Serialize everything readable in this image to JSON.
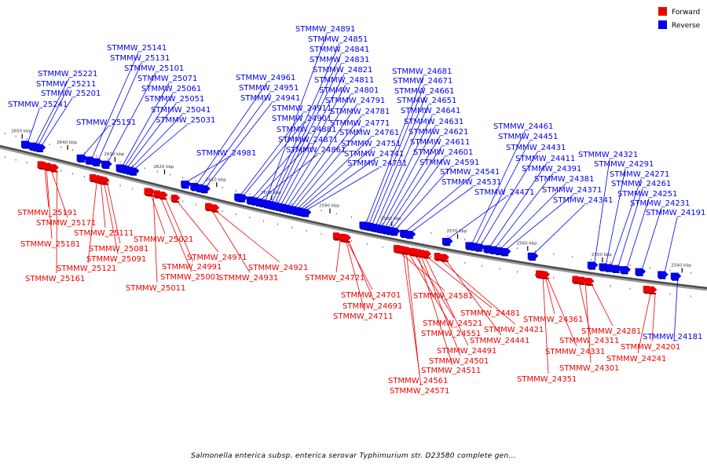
{
  "legend": [
    {
      "label": "Forward",
      "color": "#ee0000"
    },
    {
      "label": "Reverse",
      "color": "#0000ee"
    }
  ],
  "colors": {
    "forward": "#ee0000",
    "reverse": "#0000ee",
    "backbone": "#777777"
  },
  "caption": "Salmonella enterica subsp. enterica serovar Typhimurium str. D23580 complete gen...",
  "ticks": [
    "2650 kbp",
    "2640 kbp",
    "2630 kbp",
    "2620 kbp",
    "2610 kbp",
    "2600 kbp",
    "2590 kbp",
    "2580 kbp",
    "2570 kbp",
    "2560 kbp",
    "2550 kbp",
    "2540 kbp"
  ],
  "genes": [
    {
      "label": "STMMW_25241",
      "strand": "reverse",
      "kbp": 2648.6
    },
    {
      "label": "STMMW_25221",
      "strand": "reverse",
      "kbp": 2646.9
    },
    {
      "label": "STMMW_25211",
      "strand": "reverse",
      "kbp": 2646.2
    },
    {
      "label": "STMMW_25201",
      "strand": "reverse",
      "kbp": 2645.5
    },
    {
      "label": "STMMW_25191",
      "strand": "forward",
      "kbp": 2645.0
    },
    {
      "label": "STMMW_25181",
      "strand": "forward",
      "kbp": 2644.6
    },
    {
      "label": "STMMW_25171",
      "strand": "forward",
      "kbp": 2643.5
    },
    {
      "label": "STMMW_25161",
      "strand": "forward",
      "kbp": 2642.3
    },
    {
      "label": "STMMW_25151",
      "strand": "reverse",
      "kbp": 2636.5
    },
    {
      "label": "STMMW_25141",
      "strand": "reverse",
      "kbp": 2634.7
    },
    {
      "label": "STMMW_25131",
      "strand": "reverse",
      "kbp": 2633.3
    },
    {
      "label": "STMMW_25121",
      "strand": "forward",
      "kbp": 2633.8
    },
    {
      "label": "STMMW_25111",
      "strand": "forward",
      "kbp": 2632.9
    },
    {
      "label": "STMMW_25101",
      "strand": "reverse",
      "kbp": 2631.3
    },
    {
      "label": "STMMW_25091",
      "strand": "forward",
      "kbp": 2632.2
    },
    {
      "label": "STMMW_25081",
      "strand": "forward",
      "kbp": 2631.5
    },
    {
      "label": "STMMW_25071",
      "strand": "reverse",
      "kbp": 2628.3
    },
    {
      "label": "STMMW_25061",
      "strand": "reverse",
      "kbp": 2627.8
    },
    {
      "label": "STMMW_25051",
      "strand": "reverse",
      "kbp": 2627.2
    },
    {
      "label": "STMMW_25041",
      "strand": "reverse",
      "kbp": 2626.4
    },
    {
      "label": "STMMW_25031",
      "strand": "reverse",
      "kbp": 2625.7
    },
    {
      "label": "STMMW_25021",
      "strand": "forward",
      "kbp": 2622.6
    },
    {
      "label": "STMMW_25011",
      "strand": "forward",
      "kbp": 2622.2
    },
    {
      "label": "STMMW_25001",
      "strand": "forward",
      "kbp": 2620.7
    },
    {
      "label": "STMMW_24991",
      "strand": "forward",
      "kbp": 2619.7
    },
    {
      "label": "STMMW_24981",
      "strand": "reverse",
      "kbp": 2615.4
    },
    {
      "label": "STMMW_24971",
      "strand": "forward",
      "kbp": 2617.3
    },
    {
      "label": "STMMW_24961",
      "strand": "reverse",
      "kbp": 2613.6
    },
    {
      "label": "STMMW_24951",
      "strand": "reverse",
      "kbp": 2612.6
    },
    {
      "label": "STMMW_24941",
      "strand": "reverse",
      "kbp": 2611.8
    },
    {
      "label": "STMMW_24931",
      "strand": "forward",
      "kbp": 2610.8
    },
    {
      "label": "STMMW_24921",
      "strand": "forward",
      "kbp": 2609.8
    },
    {
      "label": "STMMW_24911",
      "strand": "reverse",
      "kbp": 2605.4
    },
    {
      "label": "STMMW_24901",
      "strand": "reverse",
      "kbp": 2604.9
    },
    {
      "label": "STMMW_24891",
      "strand": "reverse",
      "kbp": 2601.0
    },
    {
      "label": "STMMW_24881",
      "strand": "reverse",
      "kbp": 2603.2
    },
    {
      "label": "STMMW_24871",
      "strand": "reverse",
      "kbp": 2602.5
    },
    {
      "label": "STMMW_24861",
      "strand": "reverse",
      "kbp": 2601.7
    },
    {
      "label": "STMMW_24851",
      "strand": "reverse",
      "kbp": 2600.3
    },
    {
      "label": "STMMW_24841",
      "strand": "reverse",
      "kbp": 2599.8
    },
    {
      "label": "STMMW_24831",
      "strand": "reverse",
      "kbp": 2599.3
    },
    {
      "label": "STMMW_24821",
      "strand": "reverse",
      "kbp": 2598.8
    },
    {
      "label": "STMMW_24811",
      "strand": "reverse",
      "kbp": 2598.2
    },
    {
      "label": "STMMW_24801",
      "strand": "reverse",
      "kbp": 2597.6
    },
    {
      "label": "STMMW_24791",
      "strand": "reverse",
      "kbp": 2597.0
    },
    {
      "label": "STMMW_24781",
      "strand": "reverse",
      "kbp": 2596.4
    },
    {
      "label": "STMMW_24771",
      "strand": "reverse",
      "kbp": 2595.8
    },
    {
      "label": "STMMW_24761",
      "strand": "reverse",
      "kbp": 2595.2
    },
    {
      "label": "STMMW_24751",
      "strand": "reverse",
      "kbp": 2594.7
    },
    {
      "label": "STMMW_24741",
      "strand": "reverse",
      "kbp": 2594.2
    },
    {
      "label": "STMMW_24731",
      "strand": "reverse",
      "kbp": 2593.7
    },
    {
      "label": "STMMW_24721",
      "strand": "forward",
      "kbp": 2588.3
    },
    {
      "label": "STMMW_24711",
      "strand": "forward",
      "kbp": 2587.3
    },
    {
      "label": "STMMW_24701",
      "strand": "forward",
      "kbp": 2587.1
    },
    {
      "label": "STMMW_24691",
      "strand": "forward",
      "kbp": 2586.8
    },
    {
      "label": "STMMW_24681",
      "strand": "reverse",
      "kbp": 2584.0
    },
    {
      "label": "STMMW_24671",
      "strand": "reverse",
      "kbp": 2583.5
    },
    {
      "label": "STMMW_24661",
      "strand": "reverse",
      "kbp": 2583.0
    },
    {
      "label": "STMMW_24651",
      "strand": "reverse",
      "kbp": 2582.4
    },
    {
      "label": "STMMW_24641",
      "strand": "reverse",
      "kbp": 2581.9
    },
    {
      "label": "STMMW_24631",
      "strand": "reverse",
      "kbp": 2581.4
    },
    {
      "label": "STMMW_24621",
      "strand": "reverse",
      "kbp": 2580.9
    },
    {
      "label": "STMMW_24611",
      "strand": "reverse",
      "kbp": 2580.4
    },
    {
      "label": "STMMW_24601",
      "strand": "reverse",
      "kbp": 2579.8
    },
    {
      "label": "STMMW_24591",
      "strand": "reverse",
      "kbp": 2579.2
    },
    {
      "label": "STMMW_24581",
      "strand": "forward",
      "kbp": 2578.6
    },
    {
      "label": "STMMW_24571",
      "strand": "forward",
      "kbp": 2578.2
    },
    {
      "label": "STMMW_24561",
      "strand": "forward",
      "kbp": 2577.7
    },
    {
      "label": "STMMW_24551",
      "strand": "forward",
      "kbp": 2577.2
    },
    {
      "label": "STMMW_24541",
      "strand": "reverse",
      "kbp": 2577.6
    },
    {
      "label": "STMMW_24531",
      "strand": "reverse",
      "kbp": 2576.8
    },
    {
      "label": "STMMW_24521",
      "strand": "forward",
      "kbp": 2576.3
    },
    {
      "label": "STMMW_24511",
      "strand": "forward",
      "kbp": 2575.9
    },
    {
      "label": "STMMW_24501",
      "strand": "forward",
      "kbp": 2575.4
    },
    {
      "label": "STMMW_24491",
      "strand": "forward",
      "kbp": 2574.8
    },
    {
      "label": "STMMW_24481",
      "strand": "forward",
      "kbp": 2574.2
    },
    {
      "label": "STMMW_24471",
      "strand": "reverse",
      "kbp": 2571.2
    },
    {
      "label": "STMMW_24461",
      "strand": "reverse",
      "kbp": 2567.8
    },
    {
      "label": "STMMW_24451",
      "strand": "reverse",
      "kbp": 2567.2
    },
    {
      "label": "STMMW_24441",
      "strand": "forward",
      "kbp": 2571.5
    },
    {
      "label": "STMMW_24431",
      "strand": "reverse",
      "kbp": 2566.5
    },
    {
      "label": "STMMW_24421",
      "strand": "forward",
      "kbp": 2572.4
    },
    {
      "label": "STMMW_24411",
      "strand": "reverse",
      "kbp": 2565.2
    },
    {
      "label": "STMMW_24391",
      "strand": "reverse",
      "kbp": 2564.4
    },
    {
      "label": "STMMW_24381",
      "strand": "reverse",
      "kbp": 2563.6
    },
    {
      "label": "STMMW_24371",
      "strand": "reverse",
      "kbp": 2562.8
    },
    {
      "label": "STMMW_24361",
      "strand": "forward",
      "kbp": 2557.5
    },
    {
      "label": "STMMW_24351",
      "strand": "forward",
      "kbp": 2557.9
    },
    {
      "label": "STMMW_24341",
      "strand": "reverse",
      "kbp": 2559.0
    },
    {
      "label": "STMMW_24331",
      "strand": "forward",
      "kbp": 2557.2
    },
    {
      "label": "STMMW_24321",
      "strand": "reverse",
      "kbp": 2551.0
    },
    {
      "label": "STMMW_24311",
      "strand": "forward",
      "kbp": 2553.0
    },
    {
      "label": "STMMW_24301",
      "strand": "forward",
      "kbp": 2552.2
    },
    {
      "label": "STMMW_24291",
      "strand": "reverse",
      "kbp": 2549.5
    },
    {
      "label": "STMMW_24281",
      "strand": "forward",
      "kbp": 2551.3
    },
    {
      "label": "STMMW_24271",
      "strand": "reverse",
      "kbp": 2548.8
    },
    {
      "label": "STMMW_24261",
      "strand": "reverse",
      "kbp": 2547.9
    },
    {
      "label": "STMMW_24251",
      "strand": "reverse",
      "kbp": 2546.8
    },
    {
      "label": "STMMW_24241",
      "strand": "forward",
      "kbp": 2543.9
    },
    {
      "label": "STMMW_24231",
      "strand": "reverse",
      "kbp": 2544.9
    },
    {
      "label": "STMMW_24201",
      "strand": "forward",
      "kbp": 2543.3
    },
    {
      "label": "STMMW_24191",
      "strand": "reverse",
      "kbp": 2542.1
    },
    {
      "label": "STMMW_24181",
      "strand": "reverse",
      "kbp": 2540.5
    }
  ]
}
